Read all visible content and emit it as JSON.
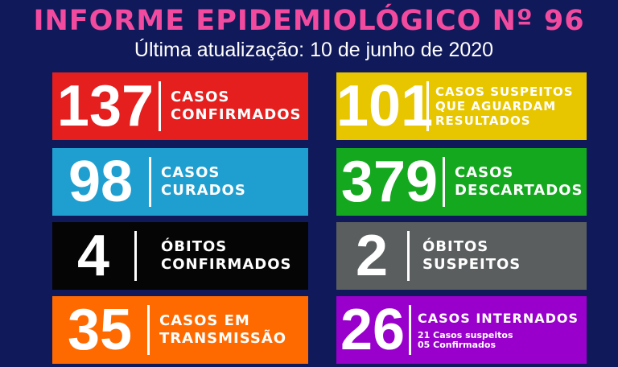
{
  "header": {
    "title": "INFORME EPIDEMIOLÓGICO Nº 96",
    "subtitle": "Última atualização: 10 de junho de 2020"
  },
  "colors": {
    "title": "#f24a9e",
    "background": "#10195a",
    "confirmados": "#e51e1e",
    "suspeitos": "#e7c600",
    "curados": "#1f9fd0",
    "descartados": "#13a81e",
    "obitos_confirmados": "#050505",
    "obitos_suspeitos": "#5a5e5f",
    "transmissao": "#ff6a00",
    "internados": "#9900cc"
  },
  "cards": {
    "confirmados": {
      "value": "137",
      "line1": "CASOS",
      "line2": "CONFIRMADOS"
    },
    "suspeitos": {
      "value": "101",
      "line1": "CASOS SUSPEITOS",
      "line2": "QUE AGUARDAM",
      "line3": "RESULTADOS"
    },
    "curados": {
      "value": "98",
      "line1": "CASOS",
      "line2": "CURADOS"
    },
    "descartados": {
      "value": "379",
      "line1": "CASOS",
      "line2": "DESCARTADOS"
    },
    "obitos_confirmados": {
      "value": "4",
      "line1": "ÓBITOS",
      "line2": "CONFIRMADOS"
    },
    "obitos_suspeitos": {
      "value": "2",
      "line1": "ÓBITOS",
      "line2": "SUSPEITOS"
    },
    "transmissao": {
      "value": "35",
      "line1": "CASOS EM",
      "line2": "TRANSMISSÃO"
    },
    "internados": {
      "value": "26",
      "line1": "CASOS INTERNADOS",
      "detail1": "21 Casos suspeitos",
      "detail2": "05 Confirmados"
    }
  }
}
